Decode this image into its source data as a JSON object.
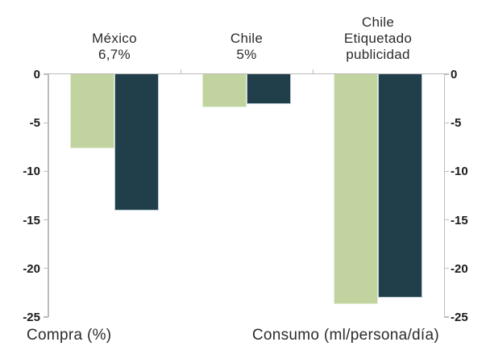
{
  "chart_data": {
    "type": "bar",
    "title": "",
    "grid": "off",
    "legend": "none",
    "groups": [
      {
        "id": "mexico-tax",
        "label_lines": [
          "México",
          "6,7%"
        ]
      },
      {
        "id": "chile-tax",
        "label_lines": [
          "Chile",
          "5%"
        ]
      },
      {
        "id": "chile-labeling",
        "label_lines": [
          "Chile",
          "Etiquetado",
          "publicidad"
        ]
      }
    ],
    "series": [
      {
        "name": "light-green",
        "color": "#c1d49f",
        "border_color": "#e4eed3",
        "values": [
          -7.6,
          -3.4,
          -23.7
        ]
      },
      {
        "name": "dark-teal",
        "color": "#213f4b",
        "border_color": "#bccdd3",
        "values": [
          -14,
          -3.1,
          -23
        ]
      }
    ],
    "y_axis": {
      "min": -25,
      "max": 0,
      "tick_step": 5,
      "ticks": [
        0,
        -5,
        -10,
        -15,
        -20,
        -25
      ],
      "tick_labels": [
        "0",
        "-5",
        "-10",
        "-15",
        "-20",
        "-25"
      ],
      "sides": "both"
    },
    "x_axis_labels": [
      {
        "text": "Compra (%)",
        "align": "left"
      },
      {
        "text": "Consumo (ml/persona/día)",
        "align": "right"
      }
    ]
  },
  "colors": {
    "background": "#ffffff",
    "axis": "#bcbcbc",
    "tick_text": "#1a1a1a",
    "label_text": "#2b2b2b",
    "bar_light": "#c1d49f",
    "bar_dark": "#213f4b"
  }
}
